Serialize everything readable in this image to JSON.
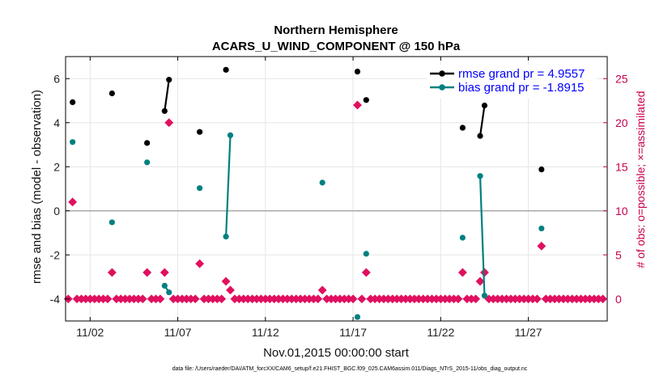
{
  "chart_data": {
    "type": "line",
    "title_line1": "Northern Hemisphere",
    "title_line2": "ACARS_U_WIND_COMPONENT @ 150 hPa",
    "xlabel": "Nov.01,2015 00:00:00 start",
    "ylabel": "rmse and bias (model - observation)",
    "ylabel_right": "# of obs: o=possible; ×=assimilated",
    "footnote": "data file: /Users/raeder/DAI/ATM_forcXX/CAM6_setup/f.e21.FHIST_BGC.f09_025.CAM6assim.011/Diags_NTrS_2015-11/obs_diag_output.nc",
    "xlim": [
      0.6,
      31.5
    ],
    "ylim": [
      -5,
      7
    ],
    "ylim_right": [
      -2.5,
      27.5
    ],
    "x_ticks": [
      2,
      7,
      12,
      17,
      22,
      27
    ],
    "x_tick_labels": [
      "11/02",
      "11/07",
      "11/12",
      "11/17",
      "11/22",
      "11/27"
    ],
    "y_ticks": [
      -4,
      -2,
      0,
      2,
      4,
      6
    ],
    "y_tick_labels": [
      "-4",
      "-2",
      "0",
      "2",
      "4",
      "6"
    ],
    "y_right_ticks": [
      0,
      5,
      10,
      15,
      20,
      25
    ],
    "y_right_tick_labels": [
      "0",
      "5",
      "10",
      "15",
      "20",
      "25"
    ],
    "grid": true,
    "legend_position": "top-right",
    "colors": {
      "rmse": "#000000",
      "bias": "#008080",
      "obs": "#e0105f",
      "zero_line": "#aaaaaa"
    },
    "series": [
      {
        "name": "rmse grand pr = 4.9557",
        "color": "#000000",
        "points": [
          [
            1.0,
            4.93
          ],
          [
            3.25,
            5.33
          ],
          [
            5.25,
            3.08
          ],
          [
            6.25,
            4.53
          ],
          [
            6.5,
            5.95
          ],
          [
            8.25,
            3.58
          ],
          [
            9.75,
            6.4
          ],
          [
            17.25,
            6.32
          ],
          [
            17.75,
            5.03
          ],
          [
            23.25,
            3.77
          ],
          [
            24.25,
            3.4
          ],
          [
            24.5,
            4.78
          ],
          [
            27.75,
            1.88
          ]
        ],
        "segments": [
          [
            6.25,
            6.5
          ],
          [
            24.25,
            24.5
          ]
        ]
      },
      {
        "name": "bias grand pr = -1.8915",
        "color": "#008080",
        "points": [
          [
            1.0,
            3.12
          ],
          [
            3.25,
            -0.52
          ],
          [
            5.25,
            2.2
          ],
          [
            6.25,
            -3.4
          ],
          [
            6.5,
            -3.7
          ],
          [
            8.25,
            1.03
          ],
          [
            9.75,
            -1.17
          ],
          [
            10.0,
            3.43
          ],
          [
            15.25,
            1.28
          ],
          [
            17.25,
            -4.82
          ],
          [
            17.75,
            -1.95
          ],
          [
            23.25,
            -1.22
          ],
          [
            24.25,
            1.58
          ],
          [
            24.5,
            -3.85
          ],
          [
            27.75,
            -0.8
          ]
        ],
        "segments": [
          [
            6.25,
            6.5
          ],
          [
            9.75,
            10.0
          ],
          [
            24.25,
            24.5
          ]
        ]
      }
    ],
    "obs_possible": {
      "step": 0.25,
      "start": 0.75,
      "end": 31.25,
      "default": 0,
      "nonzero": [
        [
          1.0,
          11
        ],
        [
          3.25,
          3
        ],
        [
          5.25,
          3
        ],
        [
          6.25,
          3
        ],
        [
          6.5,
          20
        ],
        [
          8.25,
          4
        ],
        [
          9.75,
          2
        ],
        [
          10.0,
          1
        ],
        [
          15.25,
          1
        ],
        [
          17.25,
          22
        ],
        [
          17.75,
          3
        ],
        [
          23.25,
          3
        ],
        [
          24.25,
          2
        ],
        [
          24.5,
          3
        ],
        [
          27.75,
          6
        ]
      ]
    }
  }
}
